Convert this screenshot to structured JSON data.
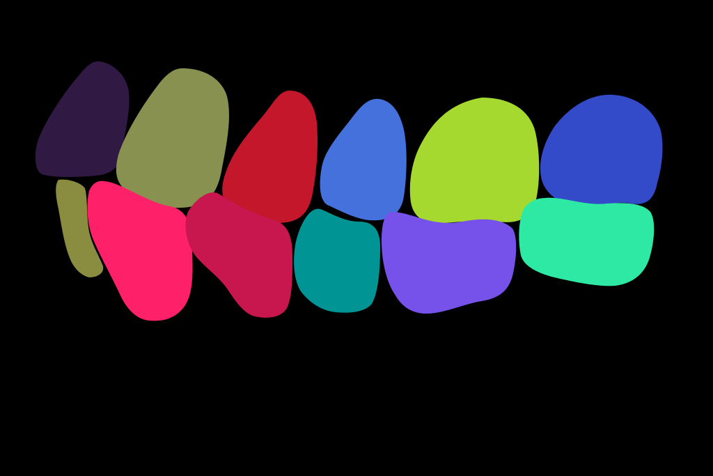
{
  "background_color": "#000000",
  "segments": [
    {
      "id": "upper-1",
      "color": "#301943"
    },
    {
      "id": "upper-2",
      "color": "#889150"
    },
    {
      "id": "upper-3",
      "color": "#C4172B"
    },
    {
      "id": "upper-4",
      "color": "#4571DC"
    },
    {
      "id": "upper-5",
      "color": "#A6D92F"
    },
    {
      "id": "upper-6",
      "color": "#334AC9"
    },
    {
      "id": "lower-1",
      "color": "#8A8C40"
    },
    {
      "id": "lower-2",
      "color": "#FE2068"
    },
    {
      "id": "lower-3",
      "color": "#C8164E"
    },
    {
      "id": "lower-4",
      "color": "#009495"
    },
    {
      "id": "lower-5",
      "color": "#7652EA"
    },
    {
      "id": "lower-6",
      "color": "#2EE9A4"
    }
  ]
}
